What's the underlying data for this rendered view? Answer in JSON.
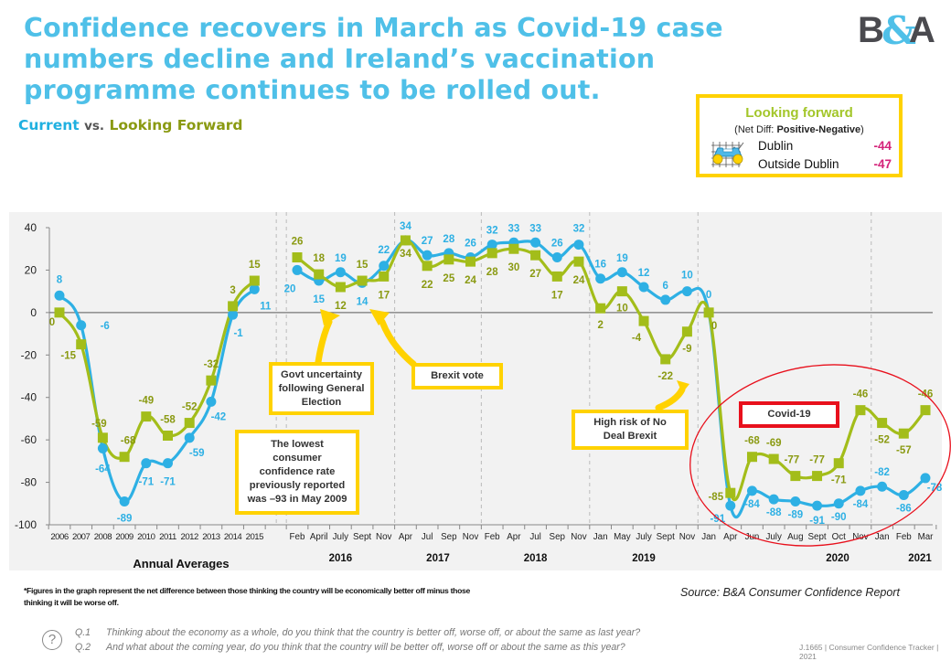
{
  "header": {
    "title": "Confidence recovers in March as Covid-19 case numbers decline and Ireland’s vaccination programme continues to be rolled out.",
    "subtitle_current": "Current",
    "subtitle_vs": "vs.",
    "subtitle_forward": "Looking Forward",
    "logo": "B&A"
  },
  "looking_forward_box": {
    "title": "Looking forward",
    "subtitle_prefix": "(Net Diff: ",
    "subtitle_bold": "Positive-Negative",
    "subtitle_suffix": ")",
    "icon": "car-chart-icon",
    "rows": [
      {
        "label": "Dublin",
        "value": "-44"
      },
      {
        "label": "Outside Dublin",
        "value": "-47"
      }
    ]
  },
  "annotations": {
    "govt": "Govt uncertainty following General Election",
    "brexit": "Brexit vote",
    "lowest": "The lowest consumer confidence rate previously reported was –93 in May 2009",
    "nodeal": "High risk of No Deal Brexit",
    "covid": "Covid-19"
  },
  "colors": {
    "current": "#2eb0e4",
    "forward": "#a3bd1a",
    "forward_label": "#8a9a12",
    "callout": "#ffd200",
    "covid": "#e8101c"
  },
  "chart_data": {
    "type": "line",
    "title": "Current vs. Looking Forward",
    "xlabel": "",
    "ylabel": "",
    "ylim": [
      -100,
      40
    ],
    "yticks": [
      40,
      20,
      0,
      -20,
      -40,
      -60,
      -80,
      -100
    ],
    "grid": false,
    "annual_label": "Annual Averages",
    "categories": [
      "2006",
      "2007",
      "2008",
      "2009",
      "2010",
      "2011",
      "2012",
      "2013",
      "2014",
      "2015",
      "Feb",
      "April",
      "July",
      "Sept",
      "Nov",
      "Apr",
      "Jul",
      "Sep",
      "Nov",
      "Feb",
      "Apr",
      "Jul",
      "Sep",
      "Nov",
      "Jan",
      "May",
      "July",
      "Sept",
      "Nov",
      "Jan",
      "Apr",
      "Jun",
      "July",
      "Aug",
      "Sept",
      "Oct",
      "Nov",
      "Jan",
      "Feb",
      "Mar"
    ],
    "year_groups": [
      {
        "label": "2016",
        "start": 10,
        "end": 14
      },
      {
        "label": "2017",
        "start": 15,
        "end": 18
      },
      {
        "label": "2018",
        "start": 19,
        "end": 23
      },
      {
        "label": "2019",
        "start": 24,
        "end": 28
      },
      {
        "label": "2020",
        "start": 29,
        "end": 36
      },
      {
        "label": "2021",
        "start": 37,
        "end": 39
      }
    ],
    "series": [
      {
        "name": "Current",
        "values": [
          8,
          -6,
          -64,
          -89,
          -71,
          -71,
          -59,
          -42,
          -1,
          11,
          20,
          15,
          19,
          14,
          22,
          34,
          27,
          28,
          26,
          32,
          33,
          33,
          26,
          32,
          16,
          19,
          12,
          6,
          10,
          0,
          -91,
          -84,
          -88,
          -89,
          -91,
          -90,
          -84,
          -82,
          -86,
          -78
        ]
      },
      {
        "name": "Looking Forward",
        "values": [
          0,
          -15,
          -59,
          -68,
          -49,
          -58,
          -52,
          -32,
          3,
          15,
          26,
          18,
          12,
          15,
          17,
          34,
          22,
          25,
          24,
          28,
          30,
          27,
          17,
          24,
          2,
          10,
          -4,
          -22,
          -9,
          0,
          -85,
          -68,
          -69,
          -77,
          -77,
          -71,
          -46,
          -52,
          -57,
          -46
        ]
      }
    ]
  },
  "footer": {
    "footnote": "*Figures in the graph represent the net difference between those thinking the country will be economically better off minus those thinking it will be worse off.",
    "source": "Source:  B&A Consumer Confidence Report",
    "q1_num": "Q.1",
    "q1_text": "Thinking about the economy as a whole, do you think that the country is better off, worse off, or about the same as last year?",
    "q2_num": "Q.2",
    "q2_text": "And what about the coming year, do you think that the country will be better off, worse off or about the same as this year?",
    "tracker": "J.1665 | Consumer Confidence Tracker | 2021"
  }
}
